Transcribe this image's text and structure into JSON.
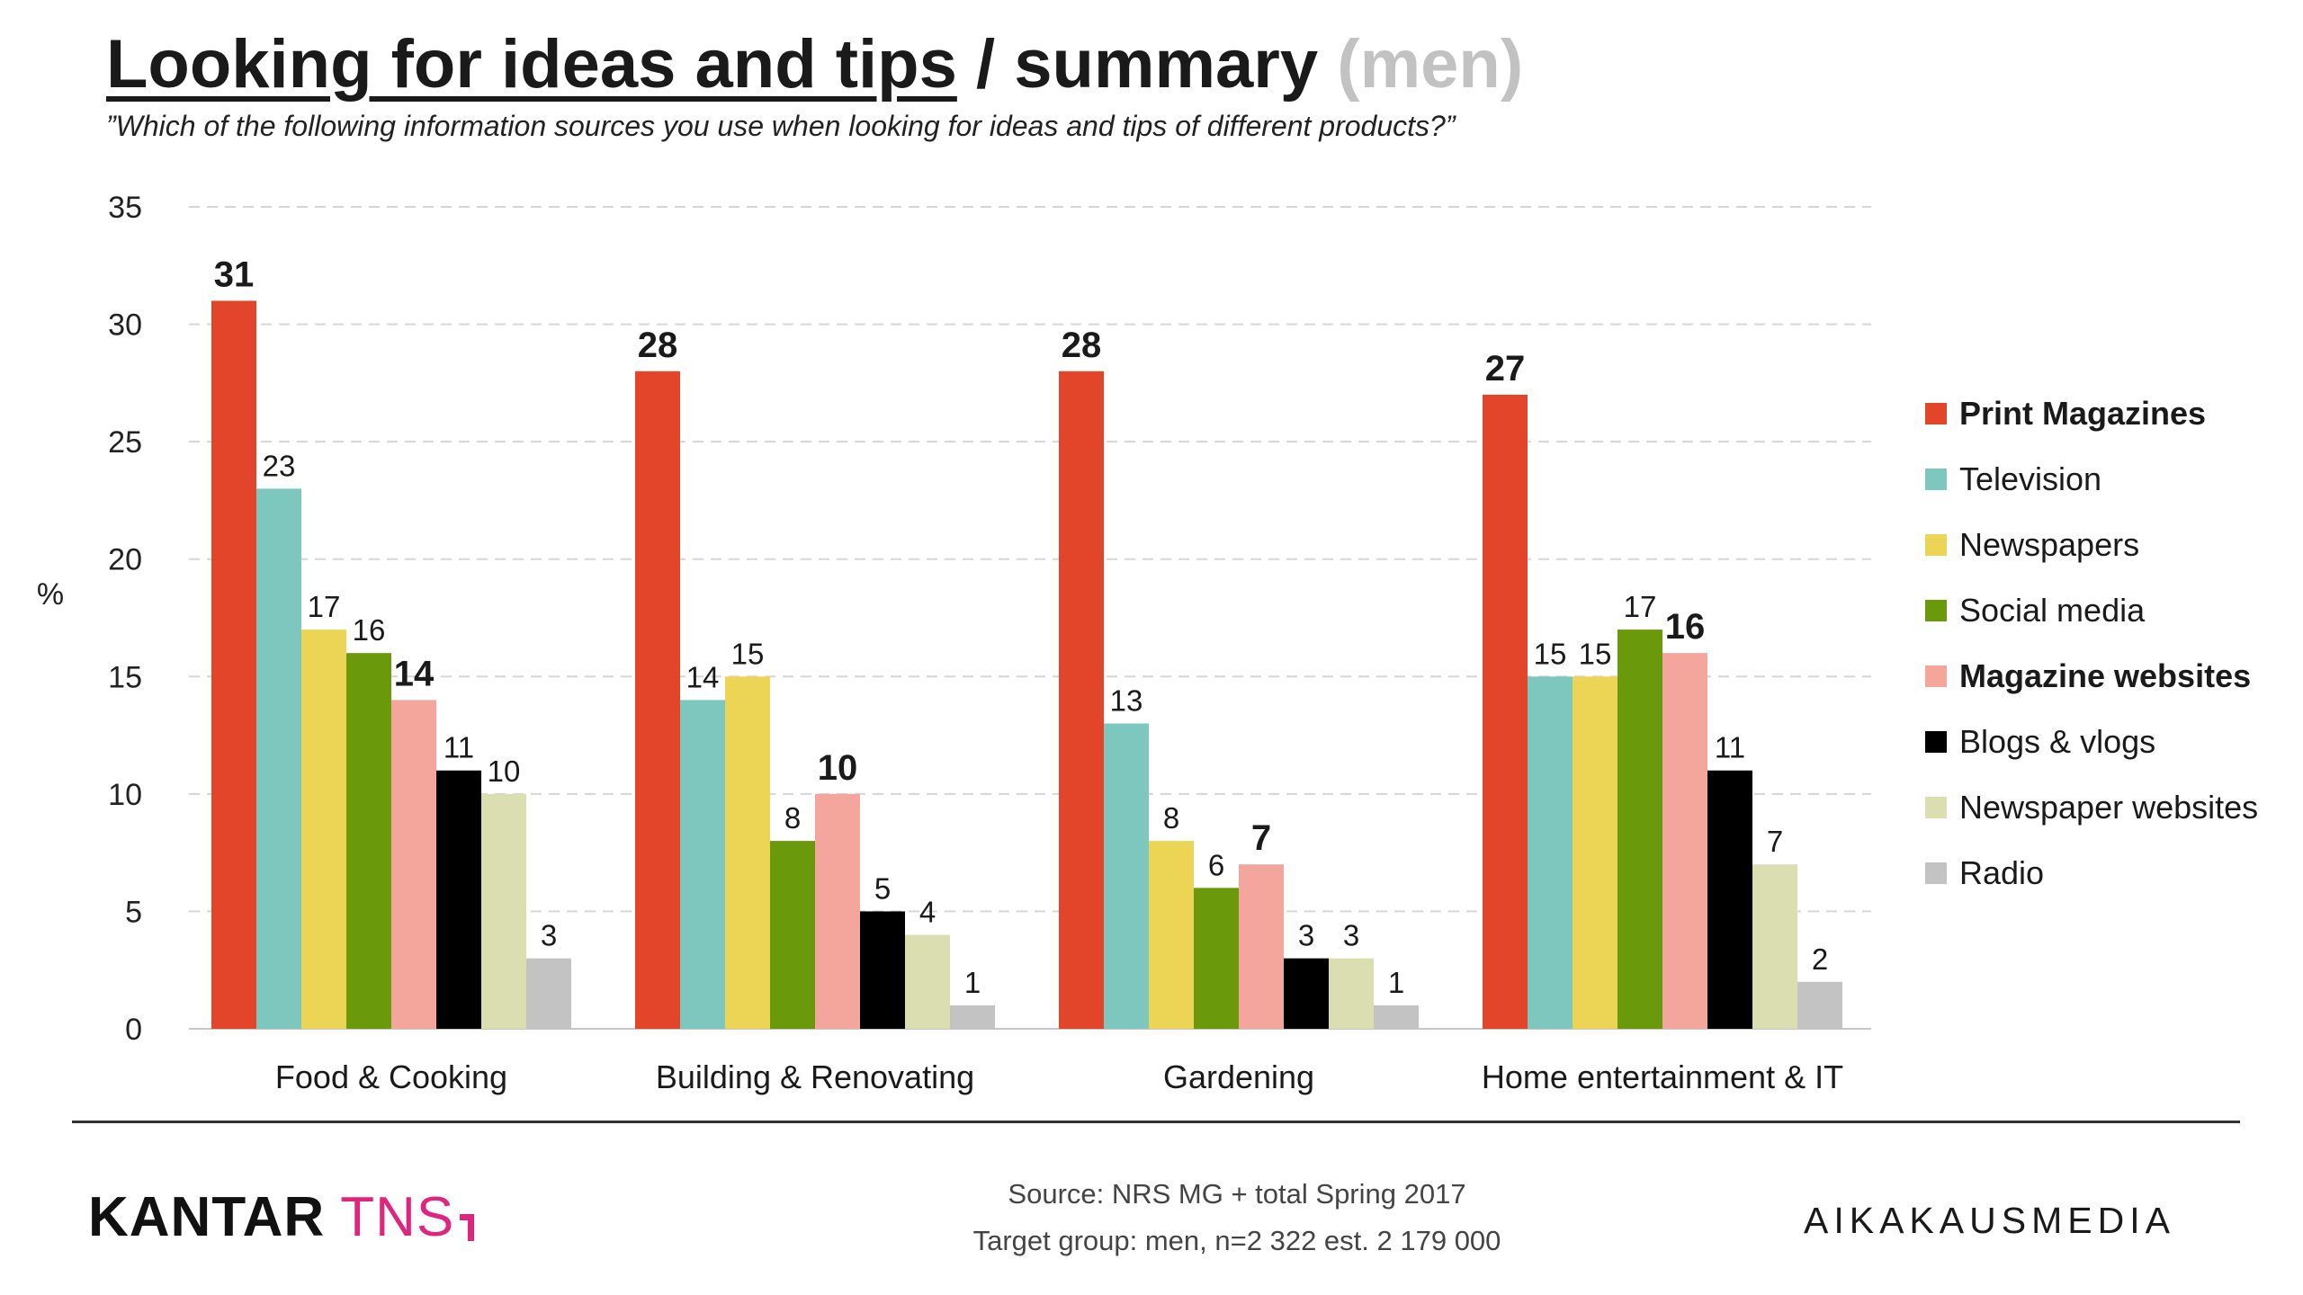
{
  "title": {
    "main": "Looking for ideas and tips",
    "rest": " / summary ",
    "muted": "(men)"
  },
  "subtitle": "”Which of the following information sources you use when looking for ideas and tips of different products?”",
  "chart_data": {
    "type": "bar",
    "ylabel": "%",
    "ylim": [
      0,
      35
    ],
    "yticks": [
      0,
      5,
      10,
      15,
      20,
      25,
      30,
      35
    ],
    "grid": "horizontal dashed",
    "legend_position": "right",
    "categories": [
      "Food & Cooking",
      "Building & Renovating",
      "Gardening",
      "Home entertainment & IT"
    ],
    "series": [
      {
        "name": "Print Magazines",
        "color": "#e2452a",
        "bold": true,
        "values": [
          31,
          28,
          28,
          27
        ]
      },
      {
        "name": "Television",
        "color": "#7ec7bf",
        "bold": false,
        "values": [
          23,
          14,
          13,
          15
        ]
      },
      {
        "name": "Newspapers",
        "color": "#ecd554",
        "bold": false,
        "values": [
          17,
          15,
          8,
          15
        ]
      },
      {
        "name": "Social media",
        "color": "#6a9a0b",
        "bold": false,
        "values": [
          16,
          8,
          6,
          17
        ]
      },
      {
        "name": "Magazine websites",
        "color": "#f4a59c",
        "bold": true,
        "values": [
          14,
          10,
          7,
          16
        ]
      },
      {
        "name": "Blogs & vlogs",
        "color": "#000000",
        "bold": false,
        "values": [
          11,
          5,
          3,
          11
        ]
      },
      {
        "name": "Newspaper websites",
        "color": "#dbdeb1",
        "bold": false,
        "values": [
          10,
          4,
          3,
          7
        ]
      },
      {
        "name": "Radio",
        "color": "#c3c3c3",
        "bold": false,
        "values": [
          3,
          1,
          1,
          2
        ]
      }
    ]
  },
  "footer": {
    "source_line1": "Source: NRS MG + total Spring 2017",
    "source_line2": "Target group: men, n=2 322 est. 2 179 000",
    "logo_left_a": "KANTAR",
    "logo_left_b": " TNS",
    "logo_right": "AIKAKAUSMEDIA"
  }
}
